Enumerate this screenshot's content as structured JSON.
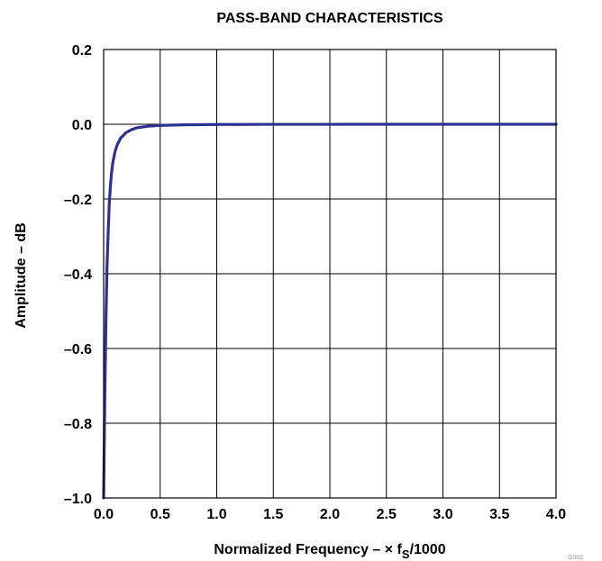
{
  "chart_data": {
    "type": "line",
    "title": "PASS-BAND CHARACTERISTICS",
    "xlabel": {
      "main": "Normalized Frequency – × f",
      "subscript": "S",
      "suffix": "/1000"
    },
    "ylabel": "Amplitude – dB",
    "xlim": [
      0,
      4.0
    ],
    "ylim": [
      -1.0,
      0.2
    ],
    "x_ticks": [
      0,
      0.5,
      1.0,
      1.5,
      2.0,
      2.5,
      3.0,
      3.5,
      4.0
    ],
    "x_tick_labels": [
      "0.0",
      "0.5",
      "1.0",
      "1.5",
      "2.0",
      "2.5",
      "3.0",
      "3.5",
      "4.0"
    ],
    "y_ticks": [
      0.2,
      0.0,
      -0.2,
      -0.4,
      -0.6,
      -0.8,
      -1.0
    ],
    "y_tick_labels": [
      "0.2",
      "0.0",
      "–0.2",
      "–0.4",
      "–0.6",
      "–0.8",
      "–1.0"
    ],
    "grid": true,
    "series": [
      {
        "color": "#2e3192",
        "x": [
          0.0,
          0.01,
          0.02,
          0.03,
          0.04,
          0.05,
          0.06,
          0.07,
          0.08,
          0.1,
          0.12,
          0.15,
          0.2,
          0.25,
          0.3,
          0.4,
          0.5,
          0.7,
          1.0,
          1.5,
          2.0,
          2.5,
          3.0,
          3.5,
          4.0
        ],
        "y": [
          -1.0,
          -0.74,
          -0.53,
          -0.38,
          -0.29,
          -0.21,
          -0.165,
          -0.13,
          -0.105,
          -0.074,
          -0.055,
          -0.037,
          -0.022,
          -0.014,
          -0.009,
          -0.005,
          -0.003,
          -0.0015,
          -0.0006,
          -0.0002,
          -0.0001,
          0.0,
          0.0,
          0.0,
          0.0
        ]
      }
    ]
  },
  "corner_mark": "G002"
}
